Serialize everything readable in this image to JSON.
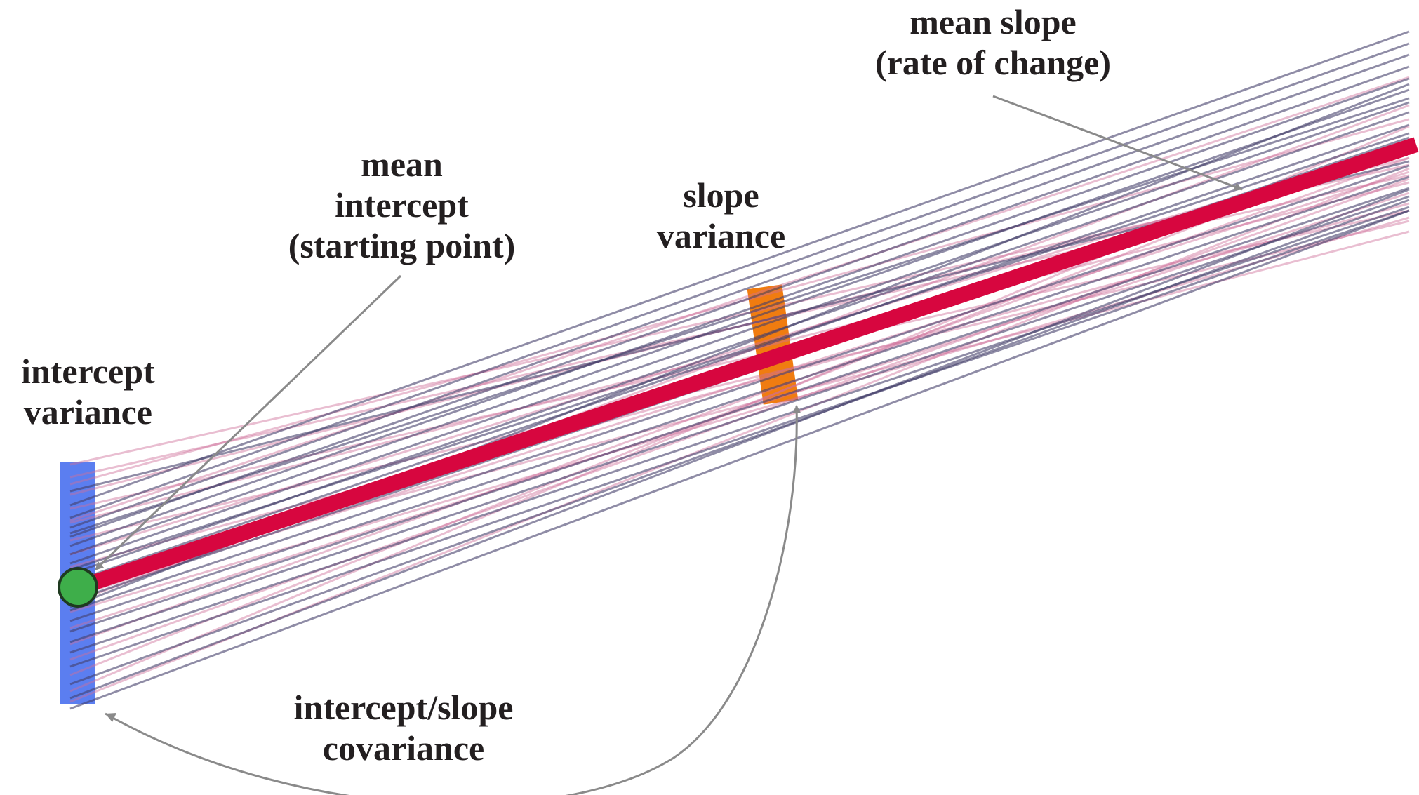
{
  "labels": {
    "intercept_variance": [
      "intercept",
      "variance"
    ],
    "mean_intercept": [
      "mean",
      "intercept",
      "(starting point)"
    ],
    "slope_variance": [
      "slope",
      "variance"
    ],
    "mean_slope": [
      "mean slope",
      "(rate of change)"
    ],
    "covariance": [
      "intercept/slope",
      "covariance"
    ]
  },
  "colors": {
    "mean_line": "#d7063f",
    "dark_lines": "#45406b",
    "pink_lines": "#cf6e99",
    "intercept_bar": "#5b7ef0",
    "slope_bar": "#f07c10",
    "mean_point": "#3eae4a",
    "arrow": "#8a8a8a",
    "text": "#231f20"
  },
  "icons": {
    "mean_point": "green-circle",
    "arrow_head": "arrowhead"
  }
}
